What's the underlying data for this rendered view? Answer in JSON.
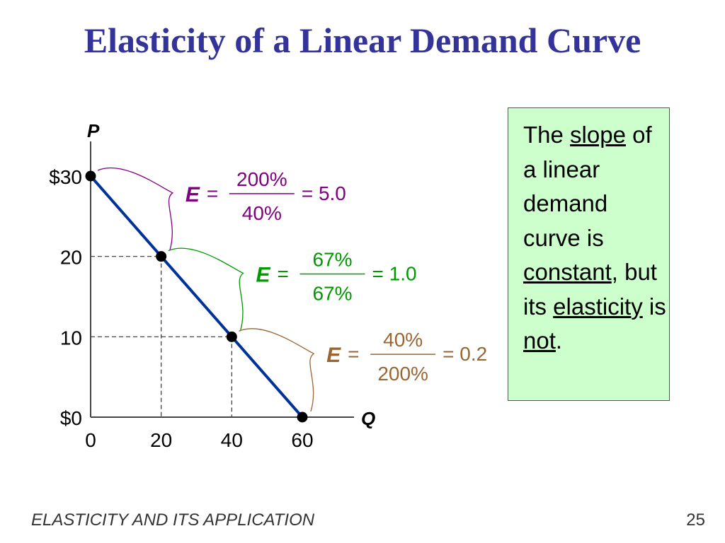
{
  "title": "Elasticity of a Linear Demand Curve",
  "footer": "ELASTICITY AND ITS APPLICATION",
  "page_number": "25",
  "note": {
    "parts": [
      "The ",
      "slope",
      " of a linear demand curve is ",
      "constant",
      ", but its ",
      "elasticity",
      " is ",
      "not",
      "."
    ]
  },
  "colors": {
    "title": "#333399",
    "line": "#003399",
    "purple": "#800080",
    "green": "#009900",
    "brown": "#996633",
    "box": "#ccffcc"
  },
  "chart_data": {
    "type": "line",
    "xlabel": "Q",
    "ylabel": "P",
    "xlim": [
      0,
      60
    ],
    "ylim": [
      0,
      30
    ],
    "x_ticks": [
      "0",
      "20",
      "40",
      "60"
    ],
    "y_ticks": [
      "$0",
      "10",
      "20",
      "$30"
    ],
    "series": [
      {
        "name": "Demand",
        "points": [
          [
            0,
            30
          ],
          [
            20,
            20
          ],
          [
            40,
            10
          ],
          [
            60,
            0
          ]
        ]
      }
    ],
    "annotations": [
      {
        "label": "E",
        "numerator": "200%",
        "denominator": "40%",
        "result": "= 5.0",
        "segment": [
          [
            0,
            30
          ],
          [
            20,
            20
          ]
        ],
        "color": "#800080"
      },
      {
        "label": "E",
        "numerator": "67%",
        "denominator": "67%",
        "result": "= 1.0",
        "segment": [
          [
            20,
            20
          ],
          [
            40,
            10
          ]
        ],
        "color": "#009900"
      },
      {
        "label": "E",
        "numerator": "40%",
        "denominator": "200%",
        "result": "= 0.2",
        "segment": [
          [
            40,
            10
          ],
          [
            60,
            0
          ]
        ],
        "color": "#996633"
      }
    ]
  }
}
